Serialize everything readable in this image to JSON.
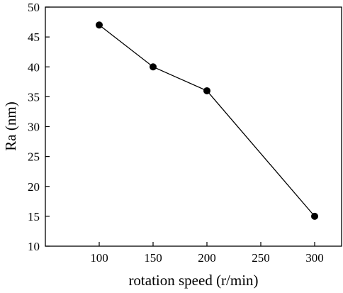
{
  "chart_data": {
    "type": "line",
    "xlabel": "rotation speed (r/min)",
    "ylabel": "Ra (nm)",
    "xlim": [
      50,
      325
    ],
    "ylim": [
      10,
      50
    ],
    "xticks": [
      100,
      150,
      200,
      250,
      300
    ],
    "yticks": [
      10,
      15,
      20,
      25,
      30,
      35,
      40,
      45,
      50
    ],
    "grid": false,
    "series": [
      {
        "x": [
          100,
          150,
          200,
          300
        ],
        "y": [
          47,
          40,
          36,
          15
        ],
        "marker": "circle",
        "color": "#000000"
      }
    ]
  }
}
